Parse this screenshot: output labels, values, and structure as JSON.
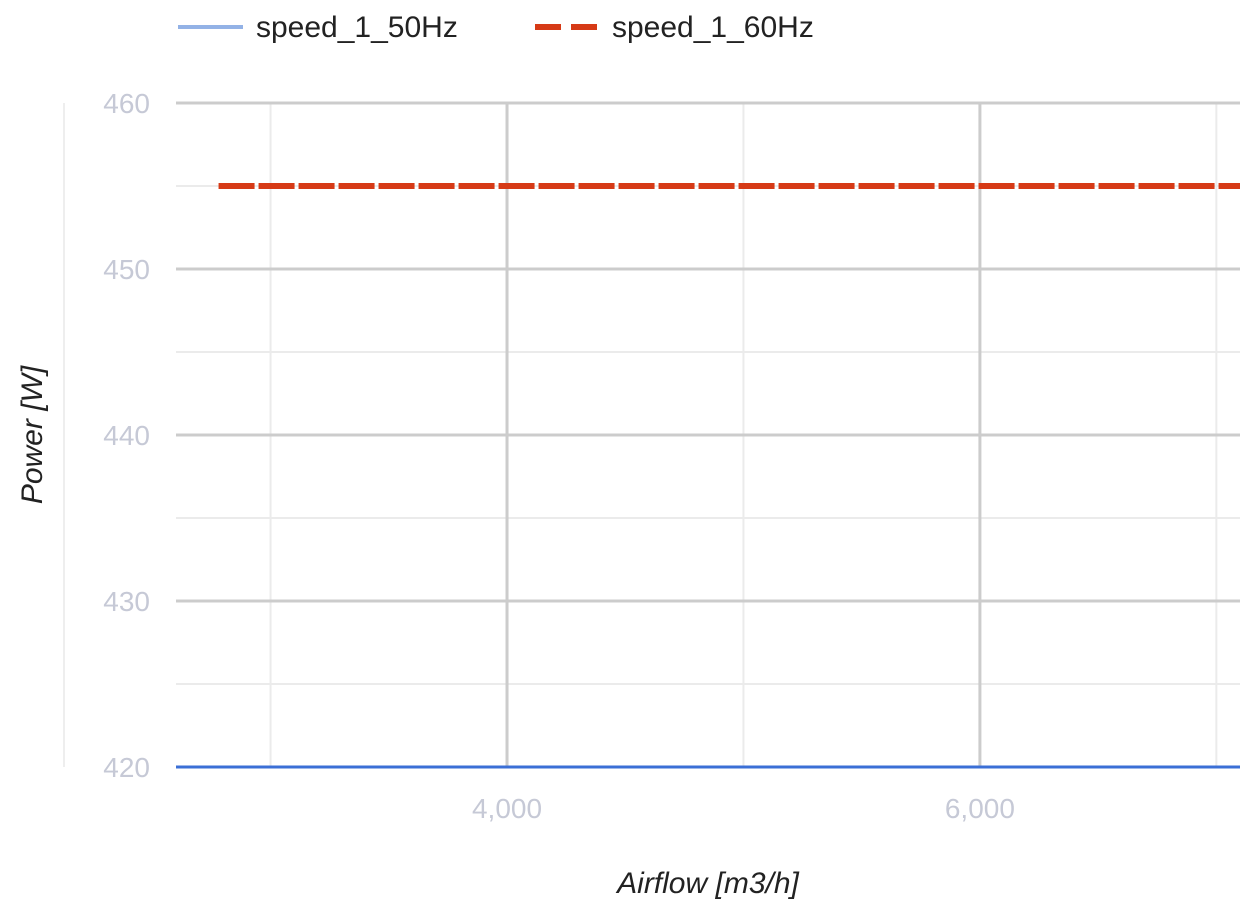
{
  "chart_data": {
    "type": "line",
    "title": "",
    "xlabel": "Airflow [m3/h]",
    "ylabel": "Power [W]",
    "xlim": [
      2600,
      7100
    ],
    "ylim": [
      420,
      460
    ],
    "x_major_ticks": [
      4000,
      6000
    ],
    "x_major_tick_labels": [
      "4,000",
      "6,000"
    ],
    "x_minor_ticks": [
      3000,
      5000,
      7000
    ],
    "y_major_ticks": [
      420,
      430,
      440,
      450,
      460
    ],
    "y_major_tick_labels": [
      "420",
      "430",
      "440",
      "450",
      "460"
    ],
    "y_minor_ticks": [
      425,
      435,
      445,
      455
    ],
    "grid": true,
    "legend_position": "top",
    "series": [
      {
        "name": "speed_1_50Hz",
        "color": "#3b6fd6",
        "legend_color": "#93b2e6",
        "line_style": "solid",
        "x": [
          2600,
          7100
        ],
        "y": [
          420,
          420
        ]
      },
      {
        "name": "speed_1_60Hz",
        "color": "#d63a16",
        "legend_color": "#d63a16",
        "line_style": "dashed",
        "x": [
          2780,
          7100
        ],
        "y": [
          455,
          455
        ]
      }
    ]
  }
}
